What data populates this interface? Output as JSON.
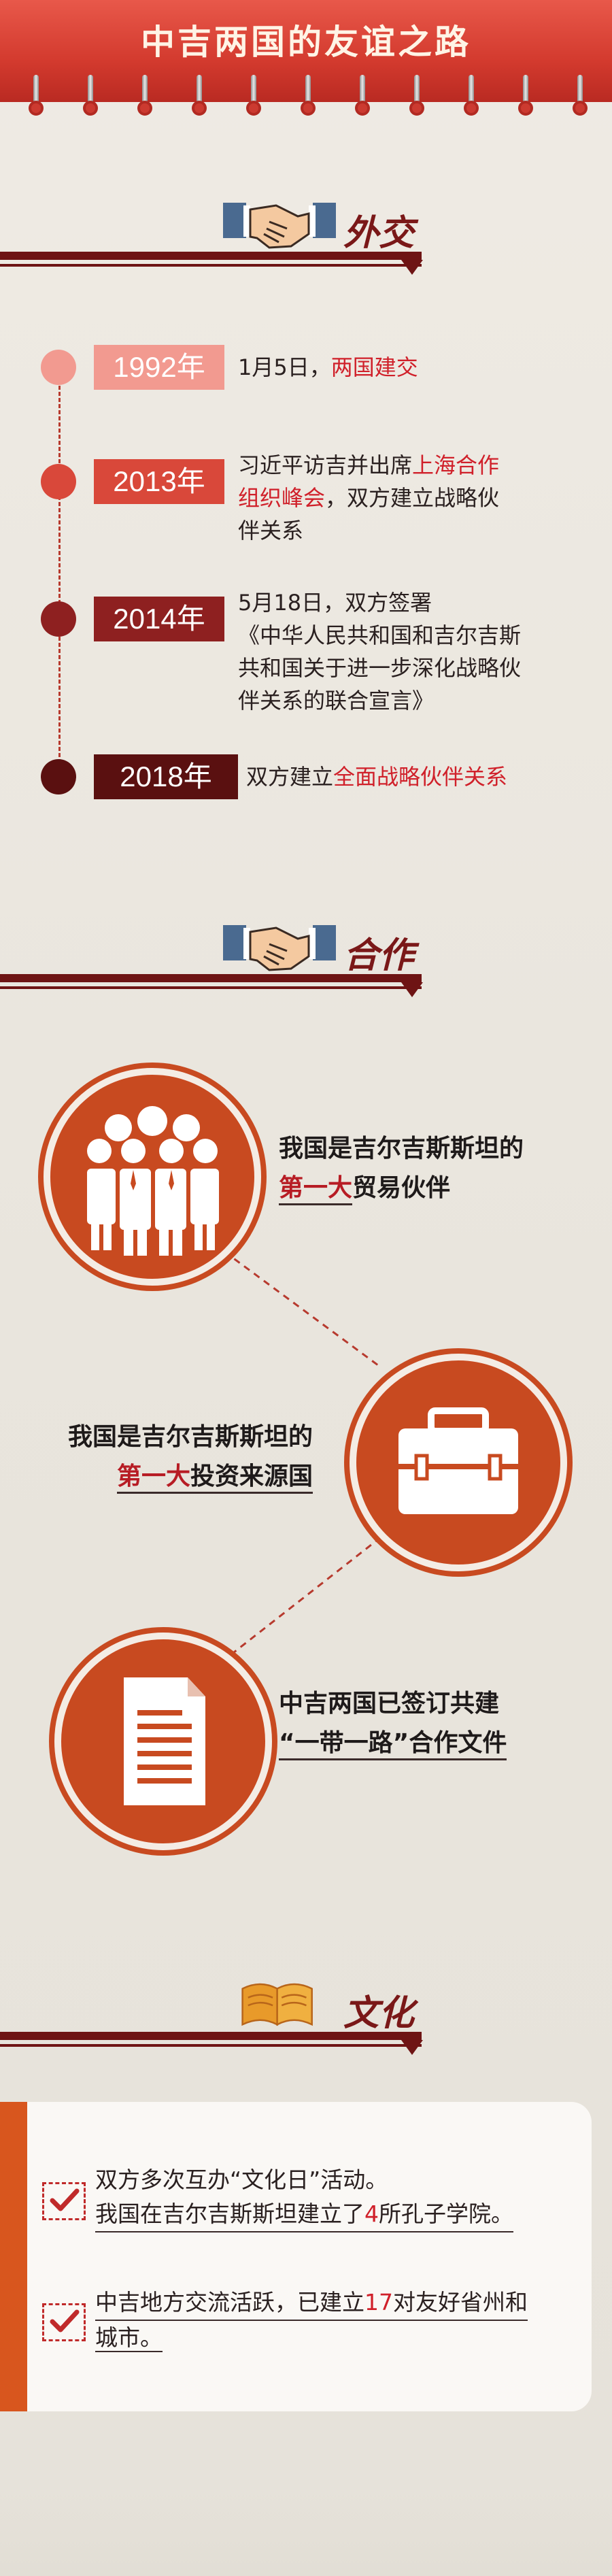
{
  "header": {
    "title": "中吉两国的友谊之路"
  },
  "sections": {
    "diplomacy": {
      "label": "外交"
    },
    "cooperation": {
      "label": "合作"
    },
    "culture": {
      "label": "文化"
    }
  },
  "timeline": [
    {
      "year": "1992年",
      "text_a": "1月5日，",
      "text_hl": "两国建交",
      "text_b": ""
    },
    {
      "year": "2013年",
      "line1a": "习近平访吉并出席",
      "line1hl": "上海合作",
      "line2hl": "组织峰会",
      "line2b": "，双方建立战略伙",
      "line3": "伴关系"
    },
    {
      "year": "2014年",
      "line1": "5月18日，双方签署",
      "line2": "《中华人民共和国和吉尔吉斯",
      "line3": "共和国关于进一步深化战略伙",
      "line4": "伴关系的联合宣言》"
    },
    {
      "year": "2018年",
      "text_a": "双方建立",
      "text_hl": "全面战略伙伴关系"
    }
  ],
  "cooperation": {
    "item1": {
      "line1": "我国是吉尔吉斯斯坦的",
      "line2_hl": "第一大",
      "line2_rest": "贸易伙伴"
    },
    "item2": {
      "line1": "我国是吉尔吉斯斯坦的",
      "line2_hl": "第一大",
      "line2_rest": "投资来源国"
    },
    "item3": {
      "line1": "中吉两国已签订共建",
      "line2": "“一带一路”合作文件"
    }
  },
  "culture": {
    "item1": {
      "line1": "双方多次互办“文化日”活动。",
      "line2a": "我国在吉尔吉斯斯坦建立了",
      "line2num": "4",
      "line2b": "所孔子学院。"
    },
    "item2": {
      "line1a": "中吉地方交流活跃，已建立",
      "line1num": "17",
      "line1b": "对友好省州和",
      "line2": "城市。"
    }
  },
  "colors": {
    "accent": "#d0202a",
    "dark_red": "#6e1414",
    "orange": "#c84a20",
    "dot1": "#f29a90",
    "dot2": "#d9483a",
    "dot3": "#8e2020",
    "dot4": "#5a1010"
  }
}
